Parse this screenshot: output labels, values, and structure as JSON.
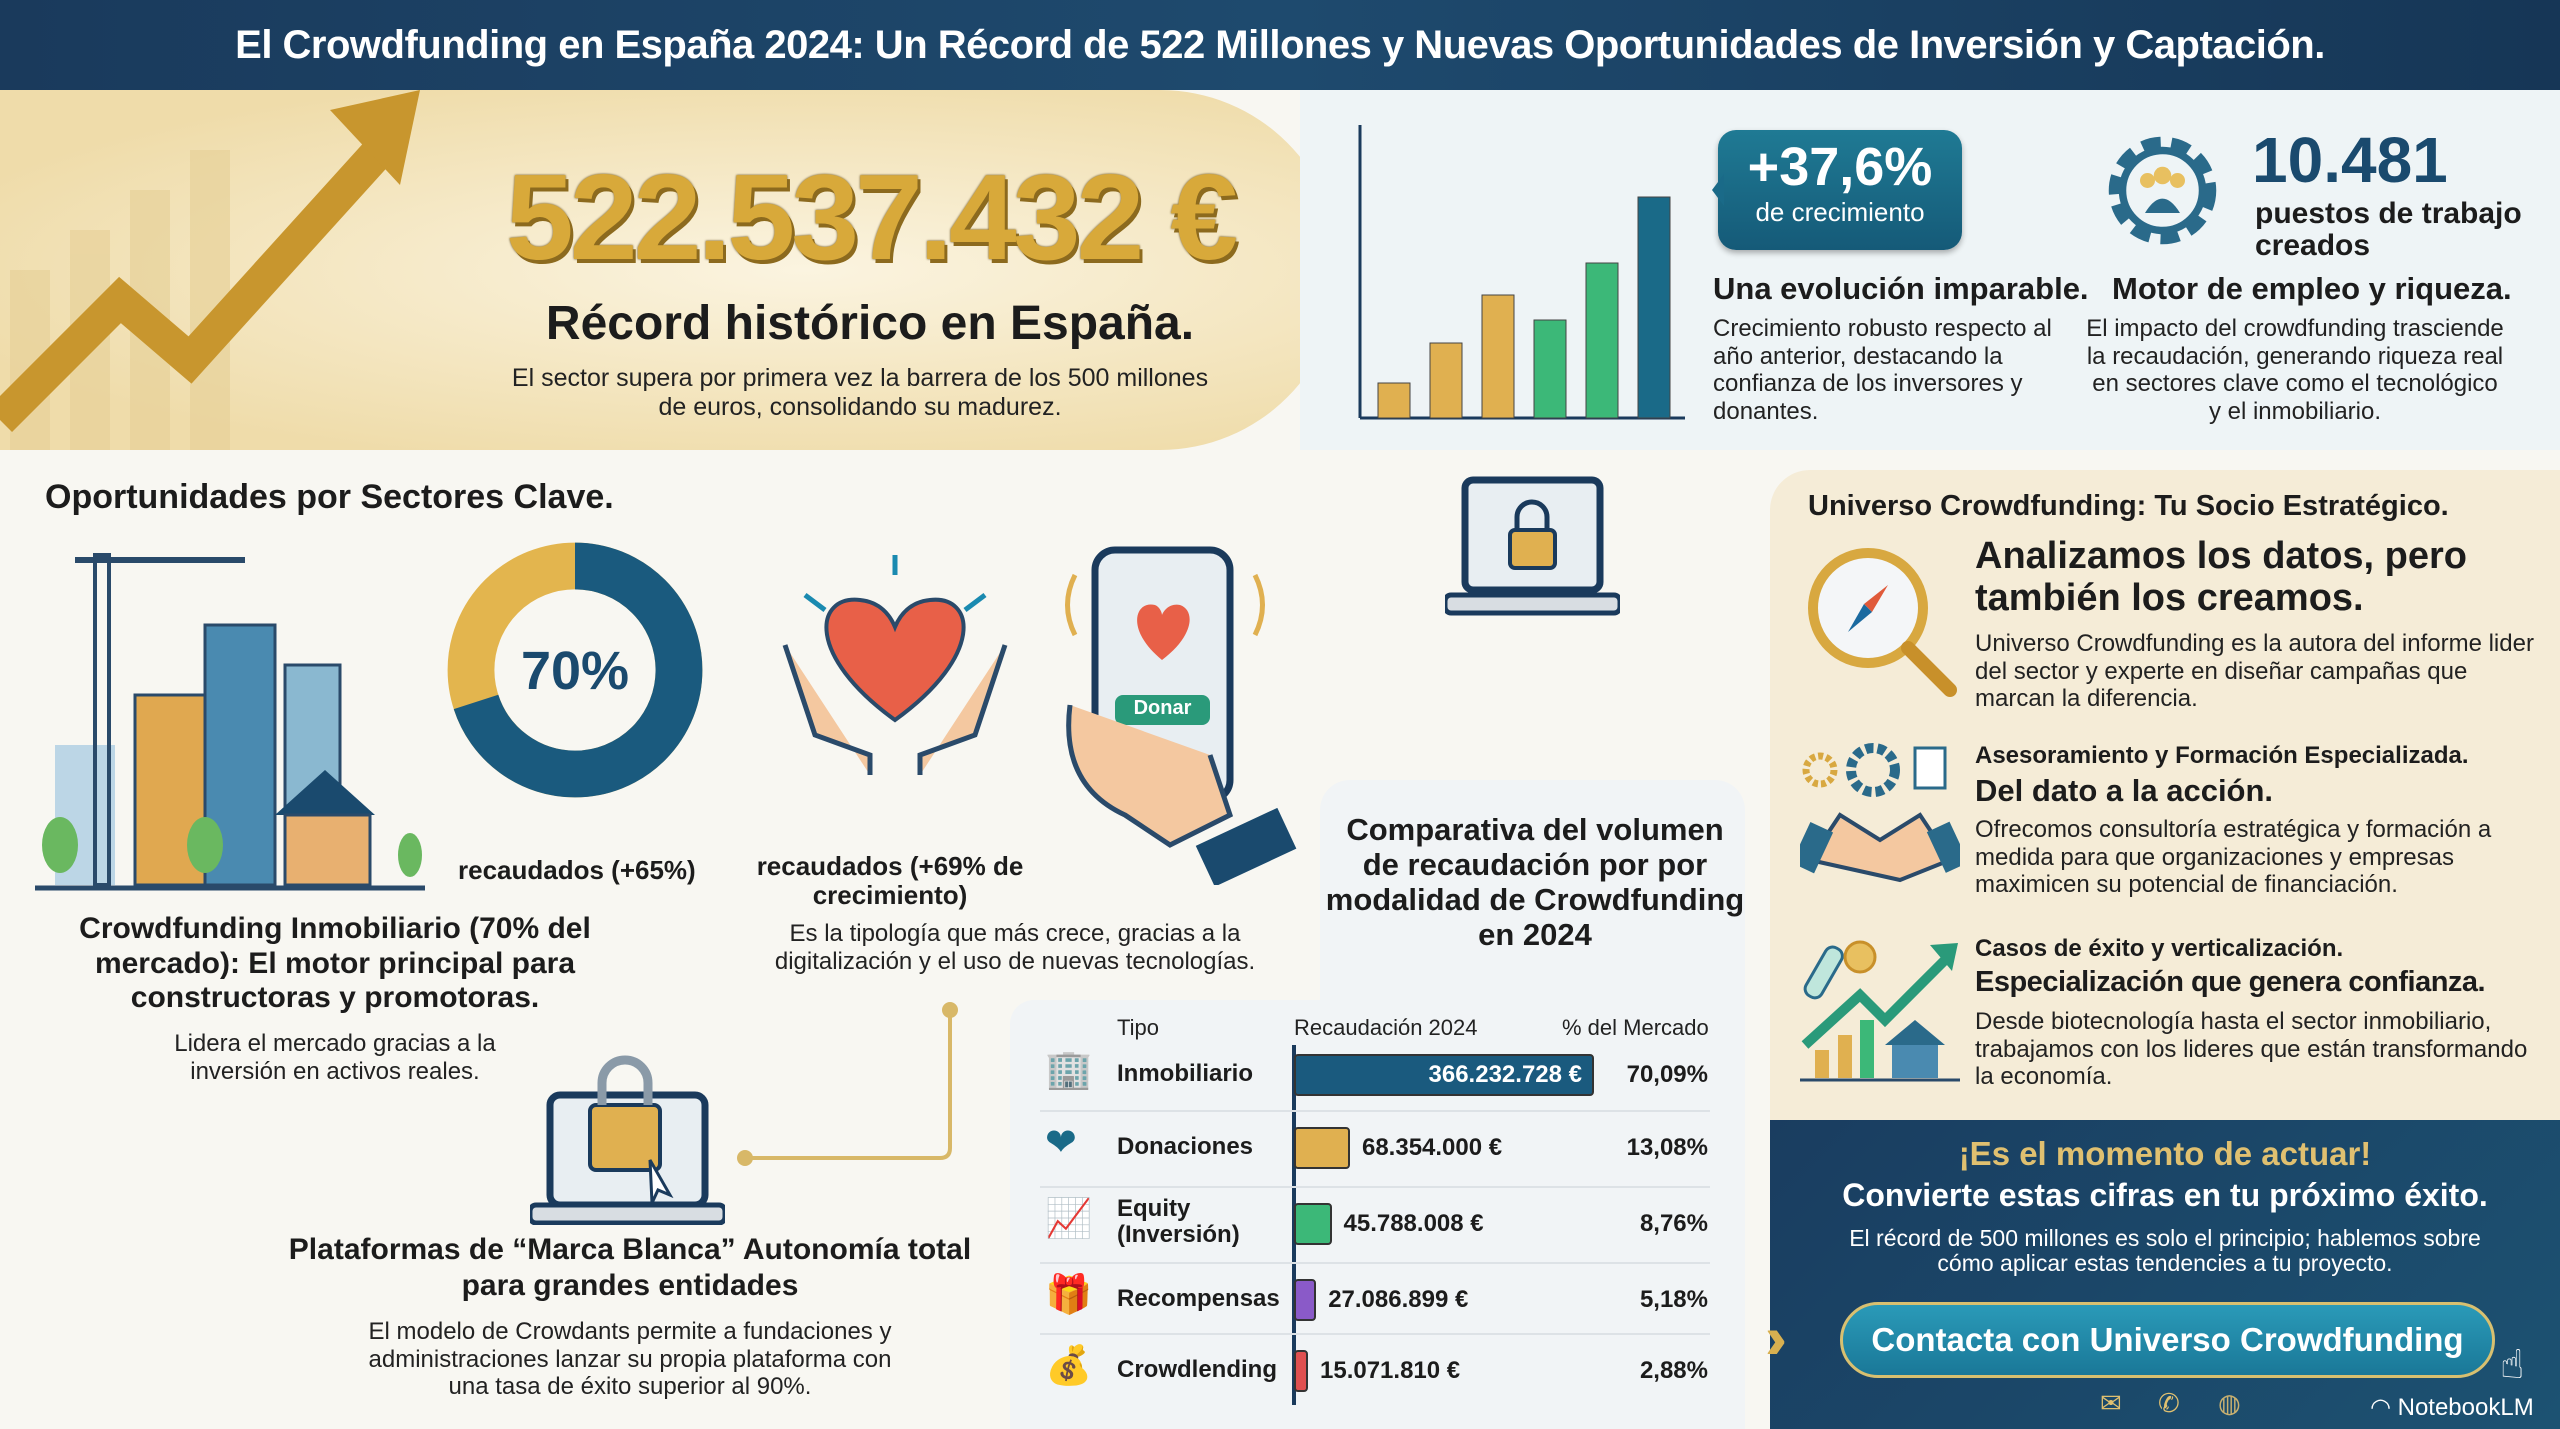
{
  "title": "El Crowdfunding en España 2024: Un Récord de 522 Millones y Nuevas Oportunidades de Inversión y Captación.",
  "hero": {
    "amount": "522.537.432 €",
    "headline": "Récord histórico en España.",
    "description": "El sector supera por primera vez la barrera de los 500 millones de euros, consolidando su madurez."
  },
  "growth": {
    "value": "+37,6%",
    "label": "de crecimiento",
    "heading": "Una evolución imparable.",
    "description": "Crecimiento robusto respecto al año anterior, destacando la confianza de los inversores y donantes."
  },
  "jobs": {
    "value": "10.481",
    "label": "puestos de trabajo creados",
    "heading": "Motor de empleo y riqueza.",
    "description": "El impacto del crowdfunding trasciende la recaudación, generando riqueza real en sectores clave como el tecnológico y el inmobiliario."
  },
  "sectors": {
    "heading": "Oportunidades por Sectores Clave.",
    "donut_value": "70%",
    "donut_fraction": 0.7,
    "real_estate_caption": "recaudados (+65%)",
    "real_estate_title": "Crowdfunding Inmobiliario (70% del mercado): El motor principal para constructoras y promotoras.",
    "real_estate_desc": "Lidera el mercado gracias a la inversión en activos reales.",
    "donations_caption": "recaudados (+69% de crecimiento)",
    "donations_desc": "Es la tipología que más crece, gracias a la digitalización y el uso de nuevas tecnologías.",
    "donate_button": "Donar",
    "white_label_title": "Plataformas de “Marca Blanca” Autonomía total para grandes entidades",
    "white_label_desc": "El modelo de Crowdants permite a fundaciones y administraciones lanzar su propia plataforma con una tasa de éxito superior al 90%."
  },
  "chart_data": {
    "type": "bar",
    "title": "Comparativa del volumen de recaudación por por modalidad de Crowdfunding en 2024",
    "columns": [
      "Tipo",
      "Recaudación 2024",
      "% del Mercado"
    ],
    "categories": [
      "Inmobiliario",
      "Donaciones",
      "Equity (Inversión)",
      "Recompensas",
      "Crowdlending"
    ],
    "values": [
      366232728,
      68354000,
      45788008,
      27086899,
      15071810
    ],
    "value_labels": [
      "366.232.728 €",
      "68.354.000 €",
      "45.788.008 €",
      "27.086.899 €",
      "15.071.810 €"
    ],
    "percent_labels": [
      "70,09%",
      "13,08%",
      "8,76%",
      "5,18%",
      "2,88%"
    ],
    "colors": [
      "#1a5a7e",
      "#e0b050",
      "#3cb878",
      "#8a5ac8",
      "#e05050"
    ]
  },
  "partner": {
    "heading": "Universo Crowdfunding: Tu Socio Estratégico.",
    "items": [
      {
        "kicker": "",
        "title": "Analizamos los datos, pero también los creamos.",
        "desc": "Universo Crowdfunding es la autora del informe lider del sector y experte en diseñar campañas que marcan la diferencia."
      },
      {
        "kicker": "Asesoramiento y Formación Especializada.",
        "title": "Del dato a la acción.",
        "desc": "Ofrecomos consultoría estratégica y formación a medida para que organizaciones y empresas maximicen su potencial de financiación."
      },
      {
        "kicker": "Casos de éxito y verticalización.",
        "title": "Especialización que genera confianza.",
        "desc": "Desde biotecnología hasta el sector inmobiliario, trabajamos con los lideres que están transformando la economía."
      }
    ]
  },
  "cta": {
    "kicker": "¡Es el momento de actuar!",
    "headline": "Convierte estas cifras en tu próximo éxito.",
    "desc": "El récord de 500 millones es solo el principio; hablemos sobre cómo aplicar estas tendencies a tu proyecto.",
    "button": "Contacta con Universo Crowdfunding"
  },
  "watermark": "NotebookLM"
}
